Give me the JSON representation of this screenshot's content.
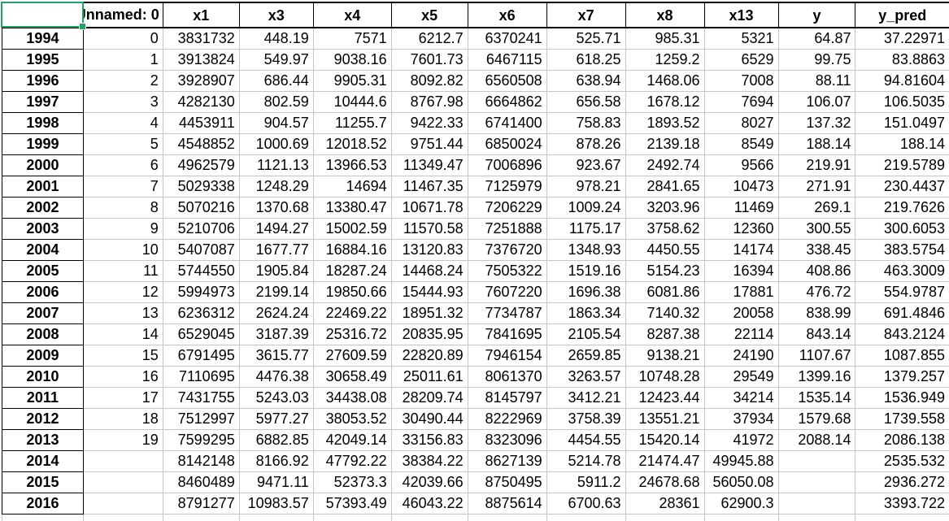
{
  "app": {
    "description": "spreadsheet-grid",
    "active_cell": {
      "position": "top-left-corner",
      "value": ""
    }
  },
  "colors": {
    "selection_green": "#21a366",
    "gridline_gray": "#c6c6c6",
    "border_black": "#000000",
    "background": "#ffffff",
    "text": "#000000"
  },
  "table": {
    "corner_label": "",
    "columns": [
      "Unnamed: 0",
      "x1",
      "x3",
      "x4",
      "x5",
      "x6",
      "x7",
      "x8",
      "x13",
      "y",
      "y_pred"
    ],
    "rows": [
      {
        "year": "1994",
        "values": [
          "0",
          "3831732",
          "448.19",
          "7571",
          "6212.7",
          "6370241",
          "525.71",
          "985.31",
          "5321",
          "64.87",
          "37.22971"
        ]
      },
      {
        "year": "1995",
        "values": [
          "1",
          "3913824",
          "549.97",
          "9038.16",
          "7601.73",
          "6467115",
          "618.25",
          "1259.2",
          "6529",
          "99.75",
          "83.8863"
        ]
      },
      {
        "year": "1996",
        "values": [
          "2",
          "3928907",
          "686.44",
          "9905.31",
          "8092.82",
          "6560508",
          "638.94",
          "1468.06",
          "7008",
          "88.11",
          "94.81604"
        ]
      },
      {
        "year": "1997",
        "values": [
          "3",
          "4282130",
          "802.59",
          "10444.6",
          "8767.98",
          "6664862",
          "656.58",
          "1678.12",
          "7694",
          "106.07",
          "106.5035"
        ]
      },
      {
        "year": "1998",
        "values": [
          "4",
          "4453911",
          "904.57",
          "11255.7",
          "9422.33",
          "6741400",
          "758.83",
          "1893.52",
          "8027",
          "137.32",
          "151.0497"
        ]
      },
      {
        "year": "1999",
        "values": [
          "5",
          "4548852",
          "1000.69",
          "12018.52",
          "9751.44",
          "6850024",
          "878.26",
          "2139.18",
          "8549",
          "188.14",
          "188.14"
        ]
      },
      {
        "year": "2000",
        "values": [
          "6",
          "4962579",
          "1121.13",
          "13966.53",
          "11349.47",
          "7006896",
          "923.67",
          "2492.74",
          "9566",
          "219.91",
          "219.5789"
        ]
      },
      {
        "year": "2001",
        "values": [
          "7",
          "5029338",
          "1248.29",
          "14694",
          "11467.35",
          "7125979",
          "978.21",
          "2841.65",
          "10473",
          "271.91",
          "230.4437"
        ]
      },
      {
        "year": "2002",
        "values": [
          "8",
          "5070216",
          "1370.68",
          "13380.47",
          "10671.78",
          "7206229",
          "1009.24",
          "3203.96",
          "11469",
          "269.1",
          "219.7626"
        ]
      },
      {
        "year": "2003",
        "values": [
          "9",
          "5210706",
          "1494.27",
          "15002.59",
          "11570.58",
          "7251888",
          "1175.17",
          "3758.62",
          "12360",
          "300.55",
          "300.6053"
        ]
      },
      {
        "year": "2004",
        "values": [
          "10",
          "5407087",
          "1677.77",
          "16884.16",
          "13120.83",
          "7376720",
          "1348.93",
          "4450.55",
          "14174",
          "338.45",
          "383.5754"
        ]
      },
      {
        "year": "2005",
        "values": [
          "11",
          "5744550",
          "1905.84",
          "18287.24",
          "14468.24",
          "7505322",
          "1519.16",
          "5154.23",
          "16394",
          "408.86",
          "463.3009"
        ]
      },
      {
        "year": "2006",
        "values": [
          "12",
          "5994973",
          "2199.14",
          "19850.66",
          "15444.93",
          "7607220",
          "1696.38",
          "6081.86",
          "17881",
          "476.72",
          "554.9787"
        ]
      },
      {
        "year": "2007",
        "values": [
          "13",
          "6236312",
          "2624.24",
          "22469.22",
          "18951.32",
          "7734787",
          "1863.34",
          "7140.32",
          "20058",
          "838.99",
          "691.4846"
        ]
      },
      {
        "year": "2008",
        "values": [
          "14",
          "6529045",
          "3187.39",
          "25316.72",
          "20835.95",
          "7841695",
          "2105.54",
          "8287.38",
          "22114",
          "843.14",
          "843.2124"
        ]
      },
      {
        "year": "2009",
        "values": [
          "15",
          "6791495",
          "3615.77",
          "27609.59",
          "22820.89",
          "7946154",
          "2659.85",
          "9138.21",
          "24190",
          "1107.67",
          "1087.855"
        ]
      },
      {
        "year": "2010",
        "values": [
          "16",
          "7110695",
          "4476.38",
          "30658.49",
          "25011.61",
          "8061370",
          "3263.57",
          "10748.28",
          "29549",
          "1399.16",
          "1379.257"
        ]
      },
      {
        "year": "2011",
        "values": [
          "17",
          "7431755",
          "5243.03",
          "34438.08",
          "28209.74",
          "8145797",
          "3412.21",
          "12423.44",
          "34214",
          "1535.14",
          "1536.949"
        ]
      },
      {
        "year": "2012",
        "values": [
          "18",
          "7512997",
          "5977.27",
          "38053.52",
          "30490.44",
          "8222969",
          "3758.39",
          "13551.21",
          "37934",
          "1579.68",
          "1739.558"
        ]
      },
      {
        "year": "2013",
        "values": [
          "19",
          "7599295",
          "6882.85",
          "42049.14",
          "33156.83",
          "8323096",
          "4454.55",
          "15420.14",
          "41972",
          "2088.14",
          "2086.138"
        ]
      },
      {
        "year": "2014",
        "values": [
          "",
          "8142148",
          "8166.92",
          "47792.22",
          "38384.22",
          "8627139",
          "5214.78",
          "21474.47",
          "49945.88",
          "",
          "2535.532"
        ]
      },
      {
        "year": "2015",
        "values": [
          "",
          "8460489",
          "9471.11",
          "52373.3",
          "42039.66",
          "8750495",
          "5911.2",
          "24678.68",
          "56050.08",
          "",
          "2936.272"
        ]
      },
      {
        "year": "2016",
        "values": [
          "",
          "8791277",
          "10983.57",
          "57393.49",
          "46043.22",
          "8875614",
          "6700.63",
          "28361",
          "62900.3",
          "",
          "3393.722"
        ]
      }
    ]
  }
}
